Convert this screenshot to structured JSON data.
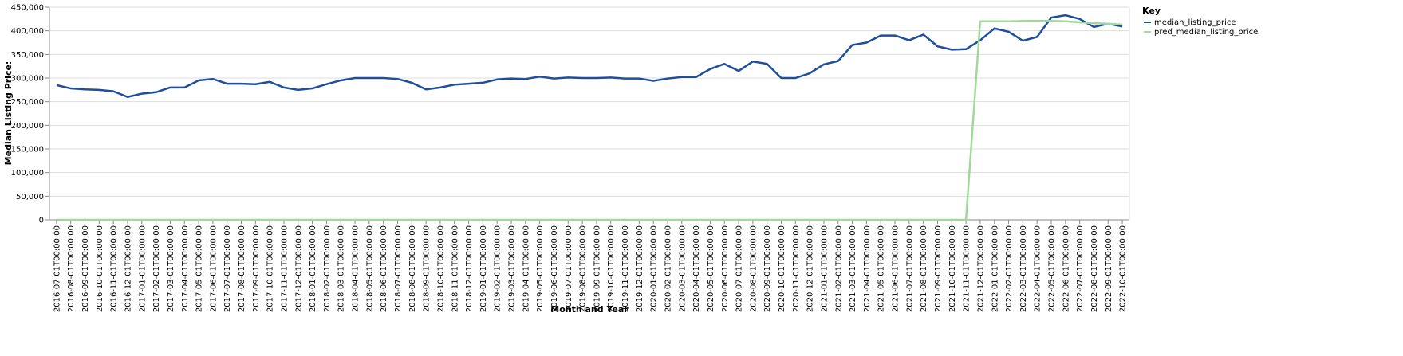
{
  "chart_data": {
    "type": "line",
    "x_label": "Month and Year",
    "y_label": "Median Listing Price:",
    "legend_title": "Key",
    "legend_position": "right",
    "grid": true,
    "categories": [
      "2016-07-01T00:00:00",
      "2016-08-01T00:00:00",
      "2016-09-01T00:00:00",
      "2016-10-01T00:00:00",
      "2016-11-01T00:00:00",
      "2016-12-01T00:00:00",
      "2017-01-01T00:00:00",
      "2017-02-01T00:00:00",
      "2017-03-01T00:00:00",
      "2017-04-01T00:00:00",
      "2017-05-01T00:00:00",
      "2017-06-01T00:00:00",
      "2017-07-01T00:00:00",
      "2017-08-01T00:00:00",
      "2017-09-01T00:00:00",
      "2017-10-01T00:00:00",
      "2017-11-01T00:00:00",
      "2017-12-01T00:00:00",
      "2018-01-01T00:00:00",
      "2018-02-01T00:00:00",
      "2018-03-01T00:00:00",
      "2018-04-01T00:00:00",
      "2018-05-01T00:00:00",
      "2018-06-01T00:00:00",
      "2018-07-01T00:00:00",
      "2018-08-01T00:00:00",
      "2018-09-01T00:00:00",
      "2018-10-01T00:00:00",
      "2018-11-01T00:00:00",
      "2018-12-01T00:00:00",
      "2019-01-01T00:00:00",
      "2019-02-01T00:00:00",
      "2019-03-01T00:00:00",
      "2019-04-01T00:00:00",
      "2019-05-01T00:00:00",
      "2019-06-01T00:00:00",
      "2019-07-01T00:00:00",
      "2019-08-01T00:00:00",
      "2019-09-01T00:00:00",
      "2019-10-01T00:00:00",
      "2019-11-01T00:00:00",
      "2019-12-01T00:00:00",
      "2020-01-01T00:00:00",
      "2020-02-01T00:00:00",
      "2020-03-01T00:00:00",
      "2020-04-01T00:00:00",
      "2020-05-01T00:00:00",
      "2020-06-01T00:00:00",
      "2020-07-01T00:00:00",
      "2020-08-01T00:00:00",
      "2020-09-01T00:00:00",
      "2020-10-01T00:00:00",
      "2020-11-01T00:00:00",
      "2020-12-01T00:00:00",
      "2021-01-01T00:00:00",
      "2021-02-01T00:00:00",
      "2021-03-01T00:00:00",
      "2021-04-01T00:00:00",
      "2021-05-01T00:00:00",
      "2021-06-01T00:00:00",
      "2021-07-01T00:00:00",
      "2021-08-01T00:00:00",
      "2021-09-01T00:00:00",
      "2021-10-01T00:00:00",
      "2021-11-01T00:00:00",
      "2021-12-01T00:00:00",
      "2022-01-01T00:00:00",
      "2022-02-01T00:00:00",
      "2022-03-01T00:00:00",
      "2022-04-01T00:00:00",
      "2022-05-01T00:00:00",
      "2022-06-01T00:00:00",
      "2022-07-01T00:00:00",
      "2022-08-01T00:00:00",
      "2022-09-01T00:00:00",
      "2022-10-01T00:00:00"
    ],
    "series": [
      {
        "name": "median_listing_price",
        "color": "#1f4e9c",
        "values": [
          285000,
          278000,
          276000,
          275000,
          272000,
          260000,
          267000,
          270000,
          280000,
          280000,
          295000,
          298000,
          288000,
          288000,
          287000,
          292000,
          280000,
          275000,
          278000,
          287000,
          295000,
          300000,
          300000,
          300000,
          298000,
          290000,
          276000,
          280000,
          286000,
          288000,
          290000,
          297000,
          299000,
          298000,
          303000,
          299000,
          301000,
          300000,
          300000,
          301000,
          299000,
          299000,
          294000,
          299000,
          302000,
          302000,
          319000,
          330000,
          315000,
          335000,
          330000,
          300000,
          300000,
          310000,
          329000,
          336000,
          370000,
          375000,
          390000,
          390000,
          380000,
          392000,
          367000,
          360000,
          361000,
          380000,
          405000,
          398000,
          379000,
          387000,
          428000,
          433000,
          425000,
          408000,
          415000,
          409000
        ]
      },
      {
        "name": "pred_median_listing_price",
        "color": "#a1d99b",
        "values": [
          0,
          0,
          0,
          0,
          0,
          0,
          0,
          0,
          0,
          0,
          0,
          0,
          0,
          0,
          0,
          0,
          0,
          0,
          0,
          0,
          0,
          0,
          0,
          0,
          0,
          0,
          0,
          0,
          0,
          0,
          0,
          0,
          0,
          0,
          0,
          0,
          0,
          0,
          0,
          0,
          0,
          0,
          0,
          0,
          0,
          0,
          0,
          0,
          0,
          0,
          0,
          0,
          0,
          0,
          0,
          0,
          0,
          0,
          0,
          0,
          0,
          0,
          0,
          0,
          0,
          420000,
          420000,
          420000,
          421000,
          421000,
          421000,
          420000,
          418000,
          416000,
          415000,
          413000
        ]
      }
    ],
    "ylim": [
      0,
      450000
    ],
    "yticks": [
      0,
      {
        "value": 50000,
        "label": "50,000"
      },
      {
        "value": 100000,
        "label": "100,000"
      },
      {
        "value": 150000,
        "label": "150,000"
      },
      {
        "value": 200000,
        "label": "200,000"
      },
      {
        "value": 250000,
        "label": "250,000"
      },
      {
        "value": 300000,
        "label": "300,000"
      },
      {
        "value": 350000,
        "label": "350,000"
      },
      {
        "value": 400000,
        "label": "400,000"
      },
      {
        "value": 450000,
        "label": "450,000"
      }
    ]
  }
}
